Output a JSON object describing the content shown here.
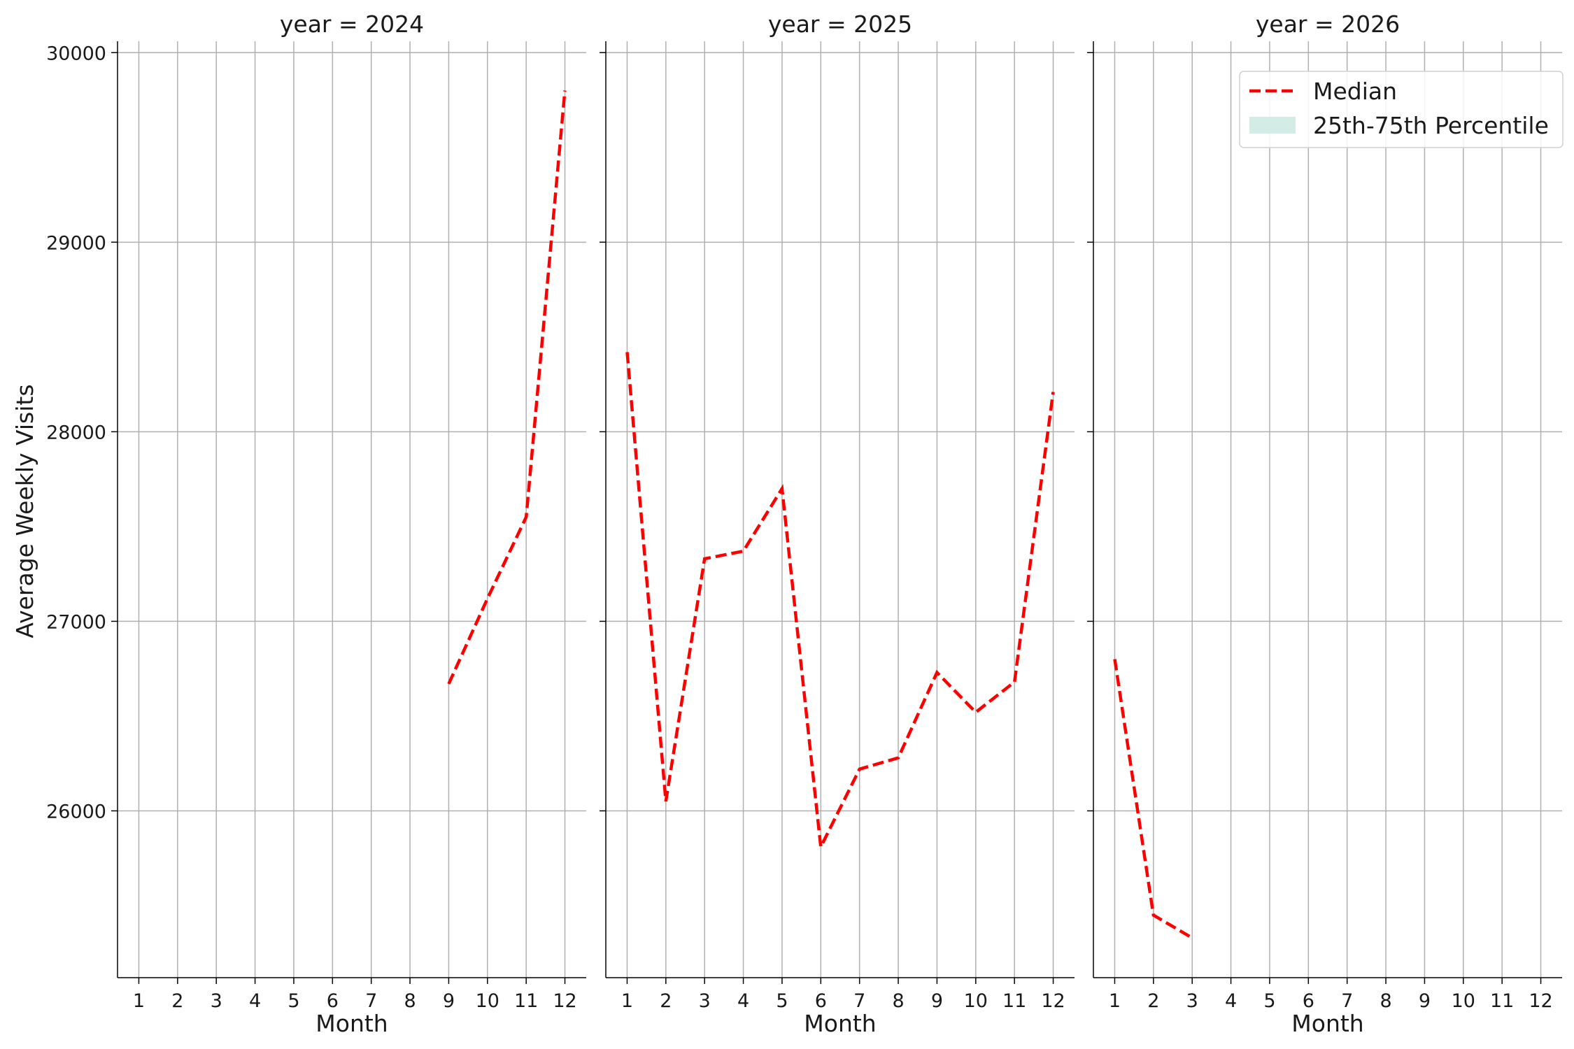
{
  "figure": {
    "y_axis_label": "Average Weekly Visits",
    "median_color": "#ff0000",
    "band_color": "#d4ece6"
  },
  "legend": {
    "median_label": "Median",
    "band_label": "25th-75th Percentile",
    "position": "top-right"
  },
  "chart_data": [
    {
      "type": "line",
      "title": "year = 2024",
      "xlabel": "Month",
      "ylabel": "Average Weekly Visits",
      "x_ticks": [
        1,
        2,
        3,
        4,
        5,
        6,
        7,
        8,
        9,
        10,
        11,
        12
      ],
      "y_ticks": [
        26000,
        27000,
        28000,
        29000,
        30000
      ],
      "xlim": [
        0.45,
        12.55
      ],
      "ylim": [
        25120,
        30060
      ],
      "grid": true,
      "series": [
        {
          "name": "Median",
          "x": [
            9,
            10,
            11,
            12
          ],
          "y": [
            26670,
            27120,
            27550,
            29800
          ]
        }
      ]
    },
    {
      "type": "line",
      "title": "year = 2025",
      "xlabel": "Month",
      "ylabel": "",
      "x_ticks": [
        1,
        2,
        3,
        4,
        5,
        6,
        7,
        8,
        9,
        10,
        11,
        12
      ],
      "y_ticks": [
        26000,
        27000,
        28000,
        29000,
        30000
      ],
      "xlim": [
        0.45,
        12.55
      ],
      "ylim": [
        25120,
        30060
      ],
      "grid": true,
      "series": [
        {
          "name": "Median",
          "x": [
            1,
            2,
            3,
            4,
            5,
            6,
            7,
            8,
            9,
            10,
            11,
            12
          ],
          "y": [
            28420,
            26050,
            27330,
            27370,
            27700,
            25810,
            26220,
            26280,
            26730,
            26520,
            26680,
            28210
          ]
        }
      ]
    },
    {
      "type": "line",
      "title": "year = 2026",
      "xlabel": "Month",
      "ylabel": "",
      "x_ticks": [
        1,
        2,
        3,
        4,
        5,
        6,
        7,
        8,
        9,
        10,
        11,
        12
      ],
      "y_ticks": [
        26000,
        27000,
        28000,
        29000,
        30000
      ],
      "xlim": [
        0.45,
        12.55
      ],
      "ylim": [
        25120,
        30060
      ],
      "grid": true,
      "series": [
        {
          "name": "Median",
          "x": [
            1,
            2,
            3
          ],
          "y": [
            26800,
            25450,
            25330
          ]
        }
      ]
    }
  ]
}
